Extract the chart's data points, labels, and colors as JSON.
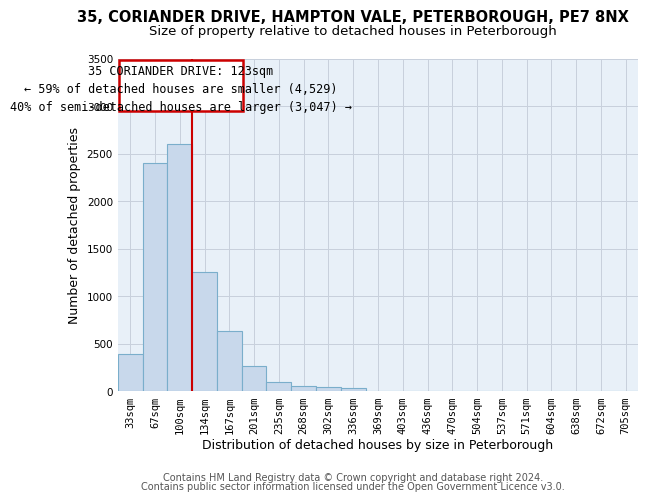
{
  "title": "35, CORIANDER DRIVE, HAMPTON VALE, PETERBOROUGH, PE7 8NX",
  "subtitle": "Size of property relative to detached houses in Peterborough",
  "xlabel": "Distribution of detached houses by size in Peterborough",
  "ylabel": "Number of detached properties",
  "categories": [
    "33sqm",
    "67sqm",
    "100sqm",
    "134sqm",
    "167sqm",
    "201sqm",
    "235sqm",
    "268sqm",
    "302sqm",
    "336sqm",
    "369sqm",
    "403sqm",
    "436sqm",
    "470sqm",
    "504sqm",
    "537sqm",
    "571sqm",
    "604sqm",
    "638sqm",
    "672sqm",
    "705sqm"
  ],
  "values": [
    390,
    2400,
    2600,
    1250,
    630,
    260,
    100,
    55,
    40,
    30,
    0,
    0,
    0,
    0,
    0,
    0,
    0,
    0,
    0,
    0,
    0
  ],
  "bar_color": "#c8d8eb",
  "bar_edge_color": "#7aaecb",
  "annotation_line1": "35 CORIANDER DRIVE: 123sqm",
  "annotation_line2": "← 59% of detached houses are smaller (4,529)",
  "annotation_line3": "40% of semi-detached houses are larger (3,047) →",
  "annotation_box_color": "#cc0000",
  "ylim": [
    0,
    3500
  ],
  "yticks": [
    0,
    500,
    1000,
    1500,
    2000,
    2500,
    3000,
    3500
  ],
  "footer1": "Contains HM Land Registry data © Crown copyright and database right 2024.",
  "footer2": "Contains public sector information licensed under the Open Government Licence v3.0.",
  "bg_color": "#ffffff",
  "plot_bg_color": "#e8f0f8",
  "grid_color": "#c8d0dc",
  "title_fontsize": 10.5,
  "subtitle_fontsize": 9.5,
  "axis_label_fontsize": 9,
  "tick_fontsize": 7.5,
  "annotation_fontsize": 8.5,
  "footer_fontsize": 7
}
